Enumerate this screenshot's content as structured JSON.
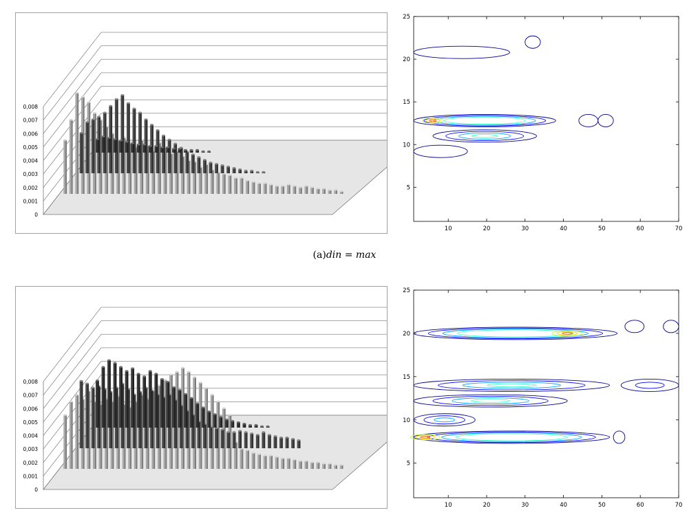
{
  "caption_a": {
    "prefix": "(a)",
    "math": "din = max"
  },
  "chart_data": [
    {
      "type": "bar",
      "subtype": "3d",
      "panel": "a-left",
      "yticks": [
        "0",
        "0,001",
        "0,002",
        "0,003",
        "0,004",
        "0,005",
        "0,006",
        "0,007",
        "0,008"
      ],
      "ylim": [
        0,
        0.008
      ],
      "series_count": 3,
      "series": [
        {
          "values": [
            0.001,
            0.0012,
            0.0011,
            0.001,
            0.0009,
            0.0008,
            0.0007,
            0.0006,
            0.0006,
            0.0005,
            0.0005,
            0.0004,
            0.0004,
            0.0003,
            0.0003,
            0.0002,
            0.0002,
            0.0002,
            0.0001,
            0.0001
          ]
        },
        {
          "values": [
            0.003,
            0.0038,
            0.004,
            0.0042,
            0.0045,
            0.005,
            0.0055,
            0.0058,
            0.0052,
            0.0048,
            0.0045,
            0.004,
            0.0036,
            0.0032,
            0.0028,
            0.0025,
            0.0022,
            0.0019,
            0.0016,
            0.0014,
            0.0012,
            0.001,
            0.0008,
            0.0007,
            0.0006,
            0.0005,
            0.0004,
            0.0003,
            0.0002,
            0.0002,
            0.0001,
            0.0001
          ]
        },
        {
          "values": [
            0.004,
            0.0055,
            0.0075,
            0.0072,
            0.0068,
            0.006,
            0.0055,
            0.005,
            0.0045,
            0.004,
            0.0042,
            0.0038,
            0.0035,
            0.004,
            0.0036,
            0.0032,
            0.0038,
            0.0035,
            0.003,
            0.0032,
            0.0028,
            0.0025,
            0.0024,
            0.002,
            0.0022,
            0.0018,
            0.0016,
            0.0015,
            0.0014,
            0.0012,
            0.0012,
            0.001,
            0.0009,
            0.0008,
            0.0008,
            0.0007,
            0.0006,
            0.0006,
            0.0007,
            0.0006,
            0.0005,
            0.0006,
            0.0005,
            0.0004,
            0.0004,
            0.0003,
            0.0003,
            0.0002
          ]
        }
      ]
    },
    {
      "type": "heatmap",
      "subtype": "contour",
      "panel": "a-right",
      "xlim": [
        1,
        70
      ],
      "ylim": [
        1,
        25
      ],
      "xticks": [
        "10",
        "20",
        "30",
        "40",
        "50",
        "60",
        "70"
      ],
      "yticks": [
        "5",
        "10",
        "15",
        "20",
        "25"
      ],
      "blobs": [
        {
          "x": [
            1,
            26
          ],
          "y": 20.8,
          "peak": 0.15
        },
        {
          "x": [
            30,
            34
          ],
          "y": 22,
          "peak": 0.1
        },
        {
          "x": [
            1,
            38
          ],
          "y": 12.8,
          "peak": 0.9,
          "hot_x": 6
        },
        {
          "x": [
            44,
            49
          ],
          "y": 12.8,
          "peak": 0.1
        },
        {
          "x": [
            49,
            53
          ],
          "y": 12.8,
          "peak": 0.1
        },
        {
          "x": [
            6,
            33
          ],
          "y": 11,
          "peak": 0.45
        },
        {
          "x": [
            1,
            15
          ],
          "y": 9.2,
          "peak": 0.15
        }
      ]
    },
    {
      "type": "bar",
      "subtype": "3d",
      "panel": "b-left",
      "yticks": [
        "0",
        "0,001",
        "0,002",
        "0,003",
        "0,004",
        "0,005",
        "0,006",
        "0,007",
        "0,008"
      ],
      "ylim": [
        0,
        0.008
      ],
      "series_count": 3,
      "series": [
        {
          "values": [
            0.0035,
            0.0045,
            0.005,
            0.0048,
            0.0045,
            0.0042,
            0.0044,
            0.004,
            0.0038,
            0.0042,
            0.004,
            0.0036,
            0.0034,
            0.003,
            0.0028,
            0.0025,
            0.0022,
            0.0018,
            0.0015,
            0.0012,
            0.001,
            0.0008,
            0.0006,
            0.0005,
            0.0004,
            0.0003,
            0.0002,
            0.0002,
            0.0001,
            0.0001
          ]
        },
        {
          "values": [
            0.005,
            0.0048,
            0.0045,
            0.0046,
            0.0044,
            0.0042,
            0.0045,
            0.0048,
            0.0044,
            0.004,
            0.0042,
            0.0045,
            0.0043,
            0.004,
            0.0038,
            0.004,
            0.0036,
            0.0032,
            0.0028,
            0.0025,
            0.002,
            0.0018,
            0.0016,
            0.0015,
            0.0014,
            0.0012,
            0.0012,
            0.0013,
            0.0012,
            0.0011,
            0.001,
            0.0012,
            0.001,
            0.0009,
            0.0008,
            0.0008,
            0.0007,
            0.0006
          ]
        },
        {
          "values": [
            0.004,
            0.005,
            0.0055,
            0.0052,
            0.0058,
            0.005,
            0.0048,
            0.0052,
            0.005,
            0.0054,
            0.0048,
            0.0046,
            0.005,
            0.0055,
            0.0052,
            0.0058,
            0.0062,
            0.0066,
            0.007,
            0.0072,
            0.0075,
            0.0072,
            0.0068,
            0.0064,
            0.006,
            0.0055,
            0.005,
            0.0045,
            0.004,
            0.002,
            0.0015,
            0.0014,
            0.0012,
            0.0011,
            0.001,
            0.001,
            0.0009,
            0.0008,
            0.0008,
            0.0007,
            0.0006,
            0.0006,
            0.0005,
            0.0005,
            0.0004,
            0.0004,
            0.0003,
            0.0003
          ]
        }
      ]
    },
    {
      "type": "heatmap",
      "subtype": "contour",
      "panel": "b-right",
      "xlim": [
        1,
        70
      ],
      "ylim": [
        1,
        25
      ],
      "xticks": [
        "10",
        "20",
        "30",
        "40",
        "50",
        "60",
        "70"
      ],
      "yticks": [
        "5",
        "10",
        "15",
        "20",
        "25"
      ],
      "blobs": [
        {
          "x": [
            1,
            54
          ],
          "y": 20,
          "peak": 0.85,
          "hot_x": 41
        },
        {
          "x": [
            56,
            61
          ],
          "y": 20.8,
          "peak": 0.1
        },
        {
          "x": [
            66,
            70
          ],
          "y": 20.8,
          "peak": 0.1
        },
        {
          "x": [
            1,
            52
          ],
          "y": 14,
          "peak": 0.5
        },
        {
          "x": [
            55,
            70
          ],
          "y": 14,
          "peak": 0.2
        },
        {
          "x": [
            1,
            41
          ],
          "y": 12.2,
          "peak": 0.45
        },
        {
          "x": [
            1,
            17
          ],
          "y": 10,
          "peak": 0.35
        },
        {
          "x": [
            1,
            52
          ],
          "y": 8,
          "peak": 0.85,
          "hot_x": 4
        },
        {
          "x": [
            53,
            56
          ],
          "y": 8,
          "peak": 0.1
        }
      ]
    }
  ]
}
